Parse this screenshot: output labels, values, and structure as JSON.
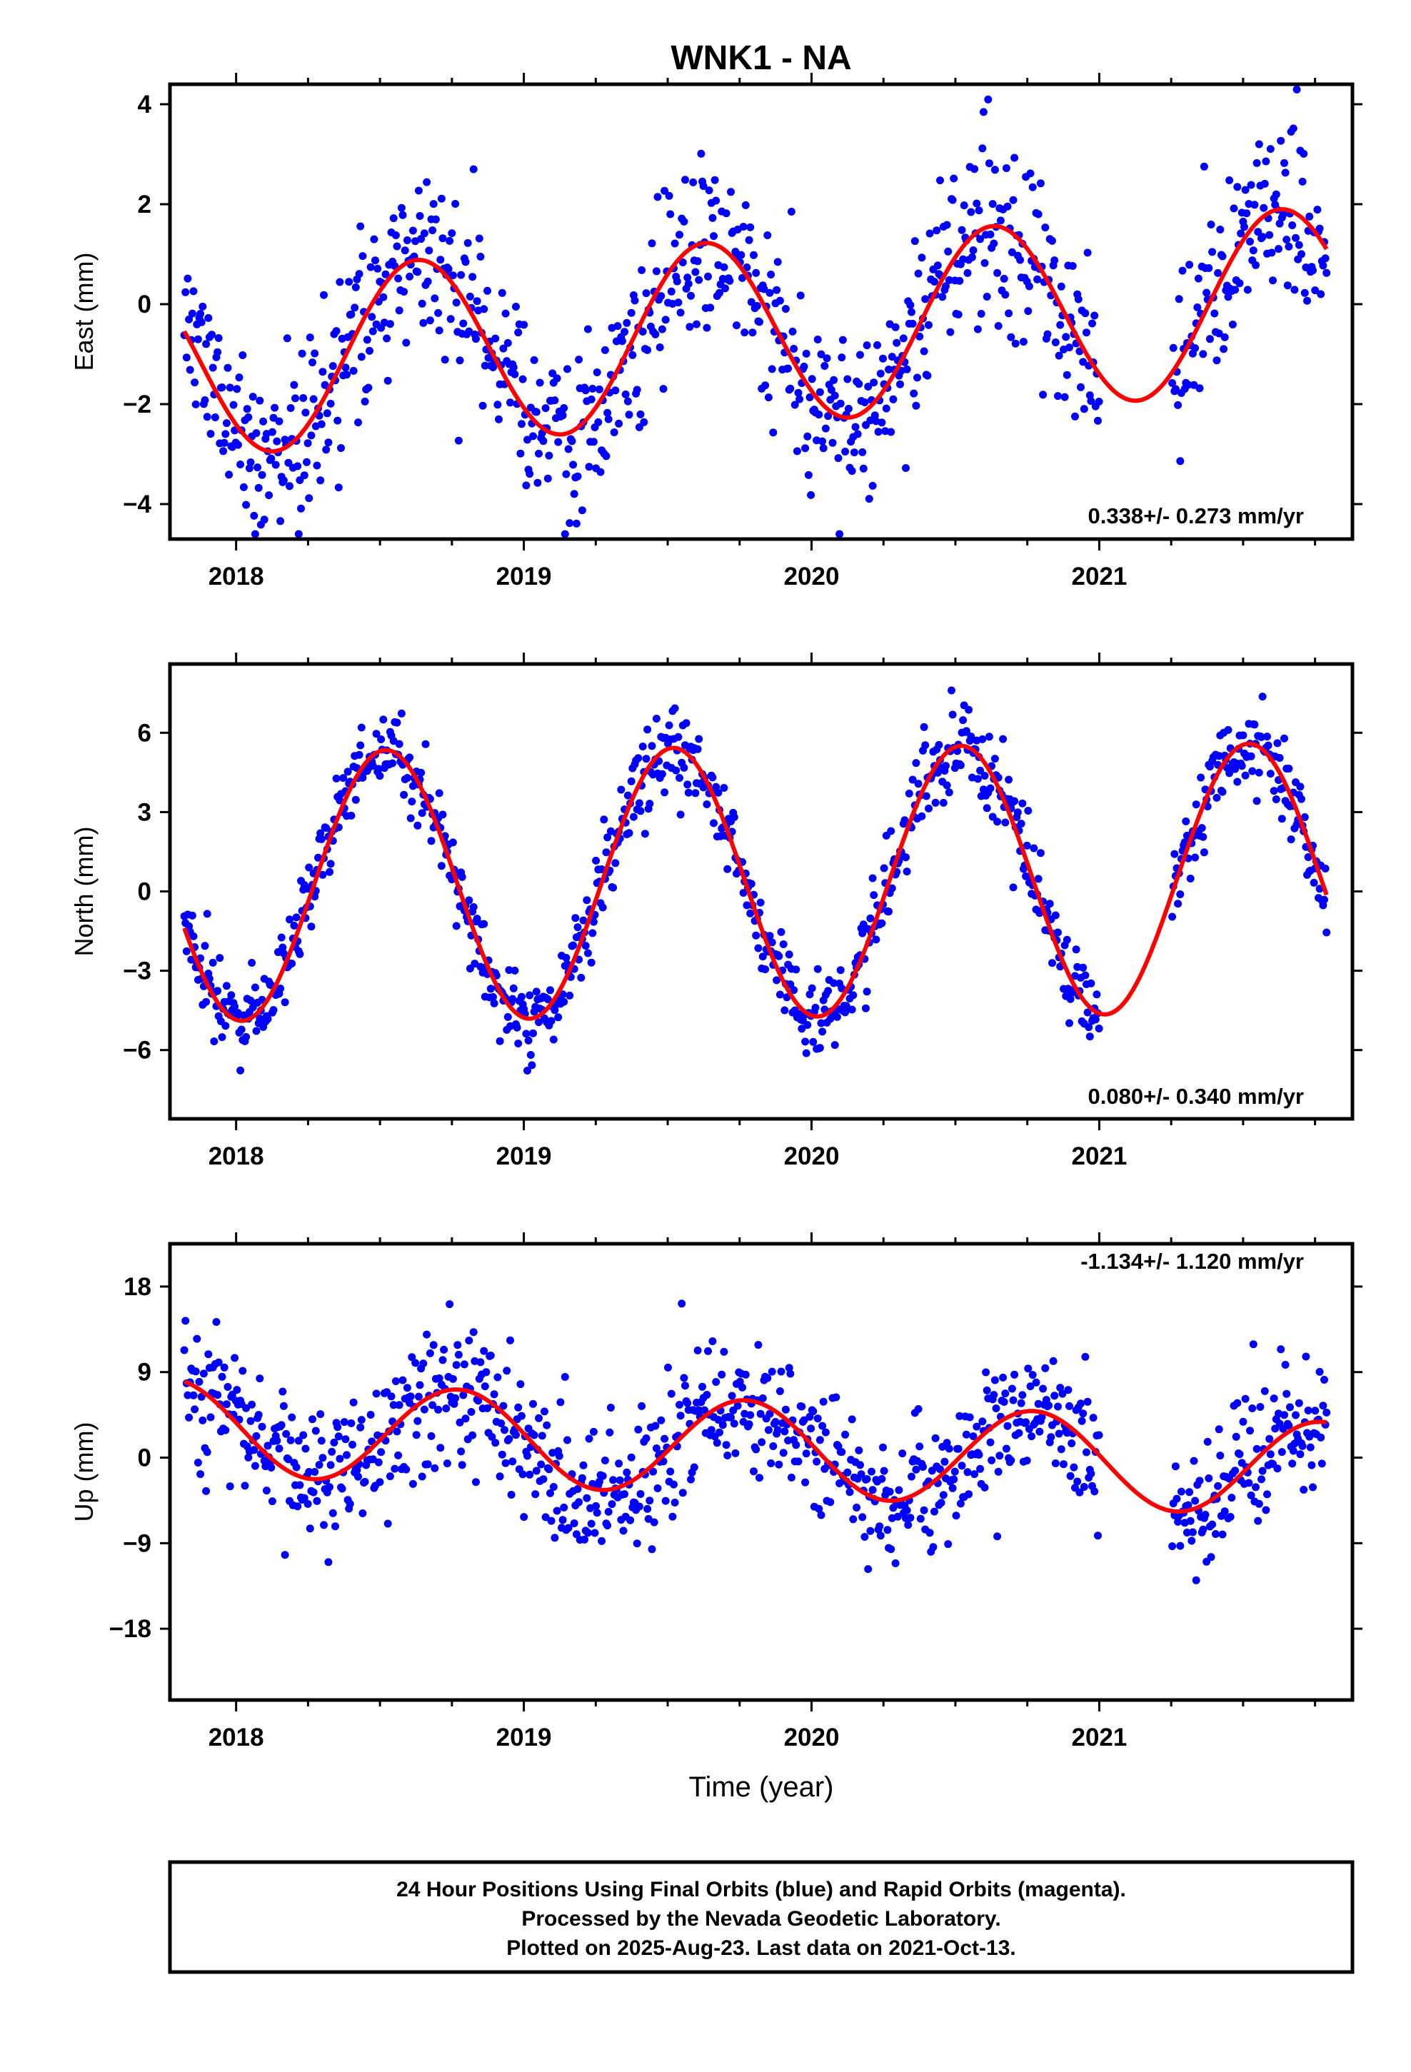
{
  "chart_data": {
    "type": "scatter",
    "title": "WNK1 - NA",
    "xlabel": "Time (year)",
    "x_tick_labels": [
      "2018",
      "2019",
      "2020",
      "2021"
    ],
    "panels": [
      {
        "id": "east",
        "ylabel": "East (mm)",
        "xlim": [
          2017.77,
          2021.88
        ],
        "ylim": [
          -4.7,
          4.4
        ],
        "yticks": [
          4,
          2,
          0,
          -2,
          -4
        ],
        "ytick_labels": [
          "4",
          "2",
          "0",
          "−2",
          "−4"
        ],
        "rate": "0.338+/- 0.273 mm/yr",
        "trend_per_yr": 0.338,
        "seasonal": {
          "mean": -0.55,
          "annual_amp": 1.83,
          "annual_peak_frac": 0.63
        },
        "scatter_sd": 0.95,
        "series": [
          {
            "name": "Final Orbits",
            "color": "#0000ff",
            "start": 2017.82,
            "end": 2021.79
          },
          {
            "name": "Fit",
            "color": "#ff0000",
            "start": 2017.82,
            "end": 2021.79
          }
        ]
      },
      {
        "id": "north",
        "ylabel": "North (mm)",
        "xlim": [
          2017.77,
          2021.88
        ],
        "ylim": [
          -8.6,
          8.6
        ],
        "yticks": [
          6,
          3,
          0,
          -3,
          -6
        ],
        "ytick_labels": [
          "6",
          "3",
          "0",
          "−3",
          "−6"
        ],
        "rate": "0.080+/- 0.340 mm/yr",
        "trend_per_yr": 0.08,
        "seasonal": {
          "mean": 0.35,
          "annual_amp": 5.1,
          "annual_peak_frac": 0.52
        },
        "scatter_sd": 0.8,
        "series": [
          {
            "name": "Final Orbits",
            "color": "#0000ff",
            "start": 2017.82,
            "end": 2021.79
          },
          {
            "name": "Fit",
            "color": "#ff0000",
            "start": 2017.82,
            "end": 2021.79
          }
        ]
      },
      {
        "id": "up",
        "ylabel": "Up (mm)",
        "xlim": [
          2017.77,
          2021.88
        ],
        "ylim": [
          -25.5,
          22.5
        ],
        "yticks": [
          18,
          9,
          0,
          -9,
          -18
        ],
        "ytick_labels": [
          "18",
          "9",
          "0",
          "−9",
          "−18"
        ],
        "rate": "-1.134+/- 1.120 mm/yr",
        "trend_per_yr": -1.134,
        "seasonal": {
          "mean": 1.0,
          "annual_amp": 5.0,
          "annual_peak_frac": 0.77
        },
        "scatter_sd": 3.6,
        "series": [
          {
            "name": "Final Orbits",
            "color": "#0000ff",
            "start": 2017.82,
            "end": 2021.79
          },
          {
            "name": "Fit",
            "color": "#ff0000",
            "start": 2017.82,
            "end": 2021.79
          }
        ]
      }
    ],
    "data_gap": [
      2021.0,
      2021.25
    ],
    "point_count_per_panel": 1000
  },
  "footer": {
    "line1": "24 Hour Positions Using Final Orbits (blue) and Rapid Orbits (magenta).",
    "line2": "Processed by the Nevada Geodetic Laboratory.",
    "line3": "Plotted on 2025-Aug-23. Last data on 2021-Oct-13."
  }
}
